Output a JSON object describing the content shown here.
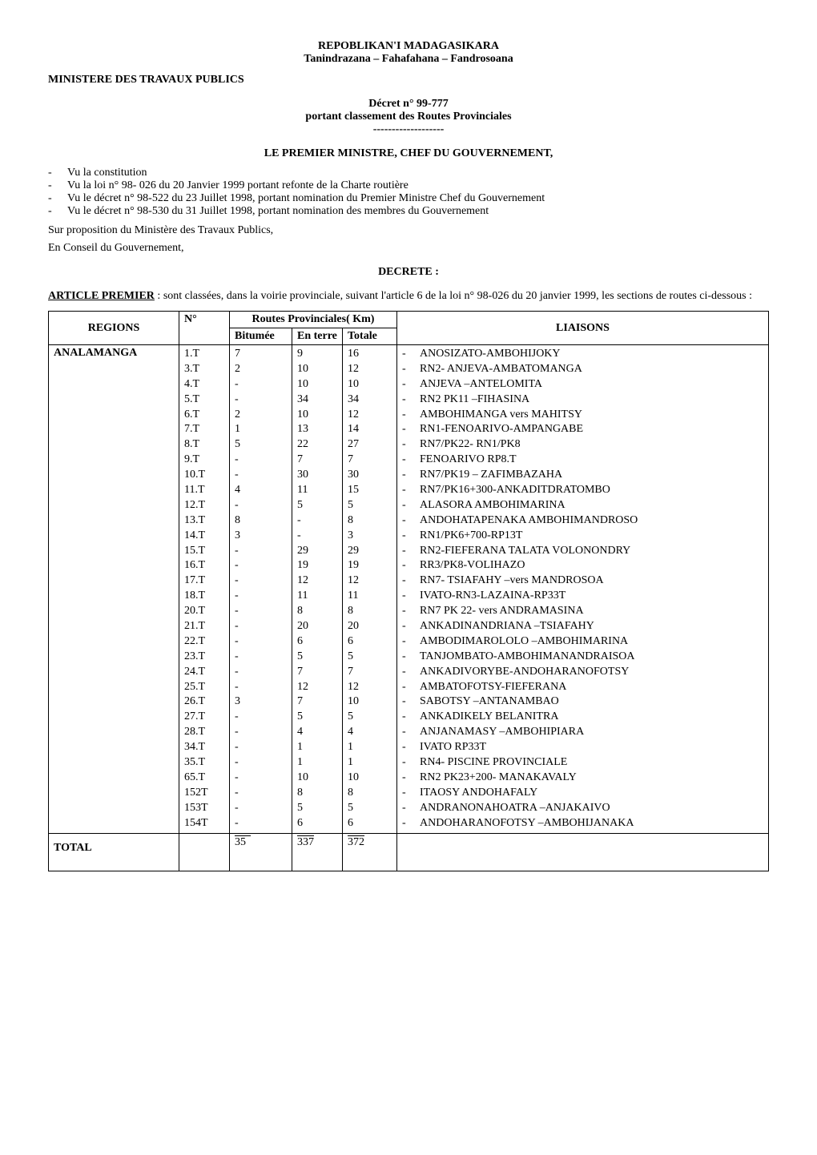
{
  "header": {
    "country": "REPOBLIKAN'I MADAGASIKARA",
    "motto": "Tanindrazana – Fahafahana – Fandrosoana",
    "ministry": "MINISTERE DES TRAVAUX PUBLICS",
    "decree_no": "Décret n° 99-777",
    "decree_subject": "portant classement des  Routes Provinciales",
    "dashes": "-------------------",
    "pm_line": "LE PREMIER MINISTRE, CHEF DU GOUVERNEMENT,"
  },
  "vu_items": [
    "Vu la constitution",
    "Vu la loi n° 98- 026 du 20 Janvier 1999 portant refonte de la Charte routière",
    "Vu le décret n° 98-522 du 23 Juillet 1998, portant nomination du Premier Ministre Chef du Gouvernement",
    "Vu le décret n° 98-530 du 31 Juillet 1998, portant nomination des membres du Gouvernement"
  ],
  "preamble": {
    "line1": "Sur proposition du Ministère des Travaux Publics,",
    "line2": "En Conseil du Gouvernement,",
    "decrete": "DECRETE :"
  },
  "article": {
    "label": "ARTICLE PREMIER",
    "colon": " :",
    "text": "  sont classées, dans la voirie provinciale, suivant l'article 6 de la loi n° 98-026 du 20 janvier 1999, les sections de routes ci-dessous :"
  },
  "table": {
    "group_header": "Routes Provinciales( Km)",
    "col_regions": "REGIONS",
    "col_n": "N°",
    "col_bitumee": "Bitumée",
    "col_enterre": "En terre",
    "col_totale": "Totale",
    "col_liaisons": "LIAISONS",
    "region": "ANALAMANGA",
    "rows": [
      {
        "n": "1.T",
        "bit": "7",
        "terre": "9",
        "tot": "16",
        "liaison": "ANOSIZATO-AMBOHIJOKY"
      },
      {
        "n": "3.T",
        "bit": "2",
        "terre": "10",
        "tot": "12",
        "liaison": "RN2- ANJEVA-AMBATOMANGA"
      },
      {
        "n": "4.T",
        "bit": "-",
        "terre": "10",
        "tot": "10",
        "liaison": "ANJEVA –ANTELOMITA"
      },
      {
        "n": "5.T",
        "bit": "-",
        "terre": "34",
        "tot": "34",
        "liaison": "RN2 PK11 –FIHASINA"
      },
      {
        "n": "6.T",
        "bit": "2",
        "terre": "10",
        "tot": "12",
        "liaison": "AMBOHIMANGA vers MAHITSY"
      },
      {
        "n": "7.T",
        "bit": "1",
        "terre": "13",
        "tot": "14",
        "liaison": "RN1-FENOARIVO-AMPANGABE"
      },
      {
        "n": "8.T",
        "bit": "5",
        "terre": "22",
        "tot": "27",
        "liaison": "RN7/PK22- RN1/PK8"
      },
      {
        "n": "9.T",
        "bit": "-",
        "terre": "7",
        "tot": "7",
        "liaison": "FENOARIVO RP8.T"
      },
      {
        "n": "10.T",
        "bit": "-",
        "terre": "30",
        "tot": "30",
        "liaison": "RN7/PK19 – ZAFIMBAZAHA"
      },
      {
        "n": "11.T",
        "bit": "4",
        "terre": "11",
        "tot": "15",
        "liaison": "RN7/PK16+300-ANKADITDRATOMBO"
      },
      {
        "n": "12.T",
        "bit": "-",
        "terre": "5",
        "tot": "5",
        "liaison": "ALASORA AMBOHIMARINA"
      },
      {
        "n": "13.T",
        "bit": "8",
        "terre": "-",
        "tot": "8",
        "liaison": "ANDOHATAPENAKA AMBOHIMANDROSO"
      },
      {
        "n": "14.T",
        "bit": "3",
        "terre": "-",
        "tot": "3",
        "liaison": "RN1/PK6+700-RP13T"
      },
      {
        "n": "15.T",
        "bit": "-",
        "terre": "29",
        "tot": "29",
        "liaison": "RN2-FIEFERANA TALATA VOLONONDRY"
      },
      {
        "n": "16.T",
        "bit": "-",
        "terre": "19",
        "tot": "19",
        "liaison": "RR3/PK8-VOLIHAZO"
      },
      {
        "n": "17.T",
        "bit": "-",
        "terre": "12",
        "tot": "12",
        "liaison": "RN7- TSIAFAHY –vers MANDROSOA"
      },
      {
        "n": "18.T",
        "bit": "-",
        "terre": "11",
        "tot": "11",
        "liaison": "IVATO-RN3-LAZAINA-RP33T"
      },
      {
        "n": "20.T",
        "bit": "-",
        "terre": "8",
        "tot": "8",
        "liaison": "RN7 PK 22- vers ANDRAMASINA"
      },
      {
        "n": "21.T",
        "bit": "-",
        "terre": "20",
        "tot": "20",
        "liaison": "ANKADINANDRIANA –TSIAFAHY"
      },
      {
        "n": "22.T",
        "bit": "-",
        "terre": "6",
        "tot": "6",
        "liaison": "AMBODIMAROLOLO –AMBOHIMARINA"
      },
      {
        "n": "23.T",
        "bit": "-",
        "terre": "5",
        "tot": "5",
        "liaison": "TANJOMBATO-AMBOHIMANANDRAISOA"
      },
      {
        "n": "24.T",
        "bit": "-",
        "terre": "7",
        "tot": "7",
        "liaison": "ANKADIVORYBE-ANDOHARANOFOTSY"
      },
      {
        "n": "25.T",
        "bit": "-",
        "terre": "12",
        "tot": "12",
        "liaison": "AMBATOFOTSY-FIEFERANA"
      },
      {
        "n": "26.T",
        "bit": "3",
        "terre": "7",
        "tot": "10",
        "liaison": "SABOTSY –ANTANAMBAO"
      },
      {
        "n": "27.T",
        "bit": "-",
        "terre": "5",
        "tot": "5",
        "liaison": "ANKADIKELY BELANITRA"
      },
      {
        "n": "28.T",
        "bit": "-",
        "terre": "4",
        "tot": "4",
        "liaison": "ANJANAMASY –AMBOHIPIARA"
      },
      {
        "n": "34.T",
        "bit": "-",
        "terre": "1",
        "tot": "1",
        "liaison": "IVATO RP33T"
      },
      {
        "n": "35.T",
        "bit": "-",
        "terre": "1",
        "tot": "1",
        "liaison": "RN4- PISCINE PROVINCIALE"
      },
      {
        "n": "65.T",
        "bit": "-",
        "terre": "10",
        "tot": "10",
        "liaison": "RN2 PK23+200- MANAKAVALY"
      },
      {
        "n": "152T",
        "bit": "-",
        "terre": "8",
        "tot": "8",
        "liaison": "ITAOSY ANDOHAFALY"
      },
      {
        "n": "153T",
        "bit": "-",
        "terre": "5",
        "tot": "5",
        "liaison": "ANDRANONAHOATRA –ANJAKAIVO"
      },
      {
        "n": "154T",
        "bit": "-",
        "terre": "6",
        "tot": "6",
        "liaison": "ANDOHARANOFOTSY –AMBOHIJANAKA"
      }
    ],
    "total_label": "TOTAL",
    "total_bit": "35",
    "total_terre": "337",
    "total_tot": "372"
  }
}
